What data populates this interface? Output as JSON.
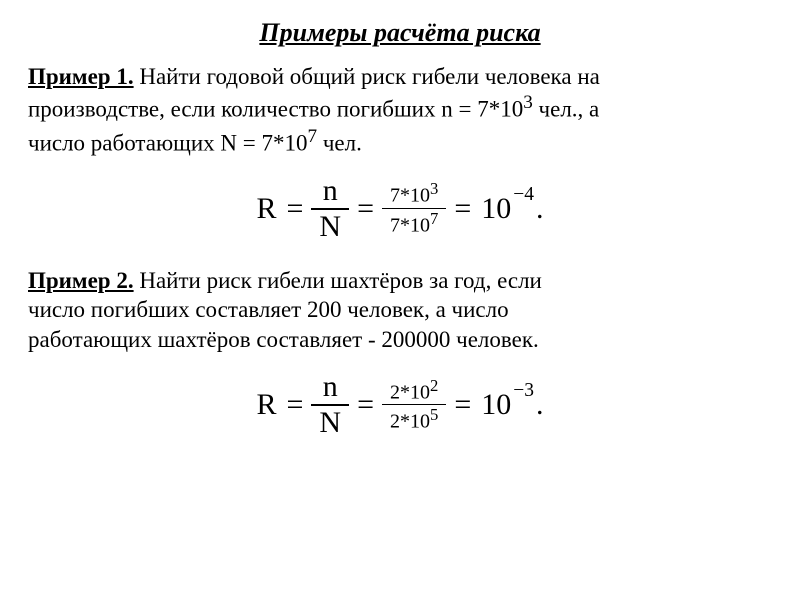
{
  "title": "Примеры расчёта риска",
  "example1": {
    "lead": "Пример 1.",
    "text1": " Найти годовой общий риск гибели человека на",
    "text2": "производстве, если количество погибших  n = 7*10",
    "exp1": "3",
    "text3": " чел., а",
    "text4": "число работающих N = 7*10",
    "exp2": "7",
    "text5": " чел."
  },
  "eq1": {
    "R": "R",
    "eq_sign1": "=",
    "frac1_num": "n",
    "frac1_den": "N",
    "eq_sign2": "=",
    "frac2_num_a": "7*10",
    "frac2_num_exp": "3",
    "frac2_den_a": "7*10",
    "frac2_den_exp": "7",
    "eq_sign3": "=",
    "res_base": "10",
    "res_exp": "−4",
    "dot": "."
  },
  "example2": {
    "lead": "Пример 2.",
    "text1": " Найти риск гибели шахтёров за год, если",
    "text2": "число погибших составляет 200 человек, а число",
    "text3": "работающих шахтёров составляет - 200000 человек."
  },
  "eq2": {
    "R": "R",
    "eq_sign1": "=",
    "frac1_num": "n",
    "frac1_den": "N",
    "eq_sign2": "=",
    "frac2_num_a": "2*10",
    "frac2_num_exp": "2",
    "frac2_den_a": "2*10",
    "frac2_den_exp": "5",
    "eq_sign3": "=",
    "res_base": "10",
    "res_exp": "−3",
    "dot": "."
  },
  "style": {
    "background": "#ffffff",
    "text_color": "#000000",
    "title_fontsize": 26,
    "body_fontsize": 23,
    "eq_fontsize": 30,
    "small_frac_fontsize": 20,
    "font_family": "Times New Roman"
  }
}
